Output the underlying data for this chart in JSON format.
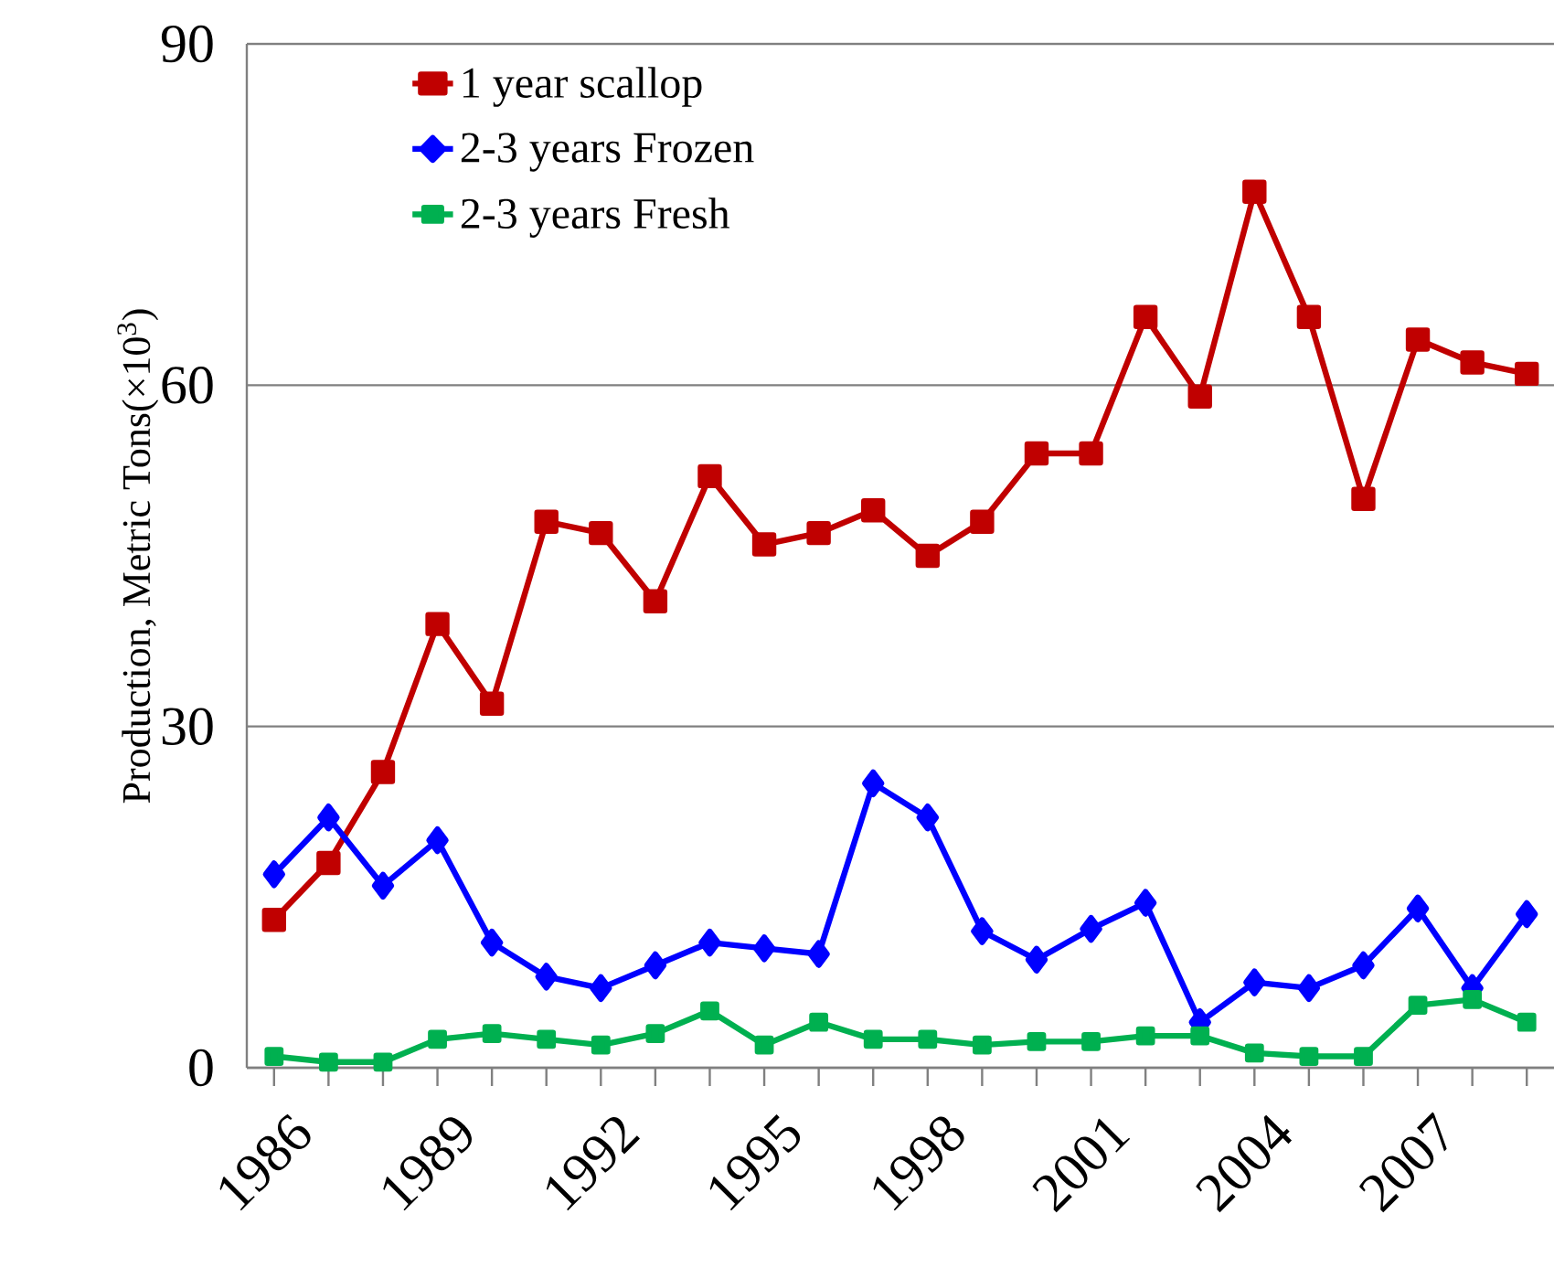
{
  "chart_data": {
    "type": "line",
    "ylabel": "Production, Metric Tons(×10$^{3}$)",
    "categories": [
      "1986",
      null,
      null,
      "1989",
      null,
      null,
      "1992",
      null,
      null,
      "1995",
      null,
      null,
      "1998",
      null,
      null,
      "2001",
      null,
      null,
      "2004",
      null,
      null,
      "2007",
      null,
      null
    ],
    "series": [
      {
        "name": "1 year scallop",
        "color": "#c00000",
        "marker": "square",
        "values": [
          13,
          18,
          26,
          39,
          32,
          48,
          47,
          41,
          52,
          46,
          47,
          49,
          45,
          48,
          54,
          54,
          66,
          59,
          77,
          66,
          50,
          64,
          62,
          61
        ]
      },
      {
        "name": "2-3 years Frozen",
        "color": "#0000ff",
        "marker": "diamond",
        "values": [
          17,
          22,
          16,
          20,
          11,
          8,
          7,
          9,
          11,
          10.5,
          10,
          25,
          22,
          12,
          9.5,
          12.2,
          14.5,
          4,
          7.5,
          7,
          9,
          14,
          7,
          13.5
        ]
      },
      {
        "name": "2-3 years Fresh",
        "color": "#00b050",
        "marker": "square",
        "values": [
          1,
          0.5,
          0.5,
          2.5,
          3,
          2.5,
          2,
          3,
          5,
          2,
          4,
          2.5,
          2.5,
          2,
          2.3,
          2.3,
          2.8,
          2.8,
          1.3,
          1,
          1,
          5.5,
          6,
          4
        ]
      }
    ],
    "ylim": [
      0,
      90
    ],
    "yticks": [
      0,
      30,
      60,
      90
    ],
    "grid": "y",
    "legend": "top left",
    "line_style": "solid"
  }
}
